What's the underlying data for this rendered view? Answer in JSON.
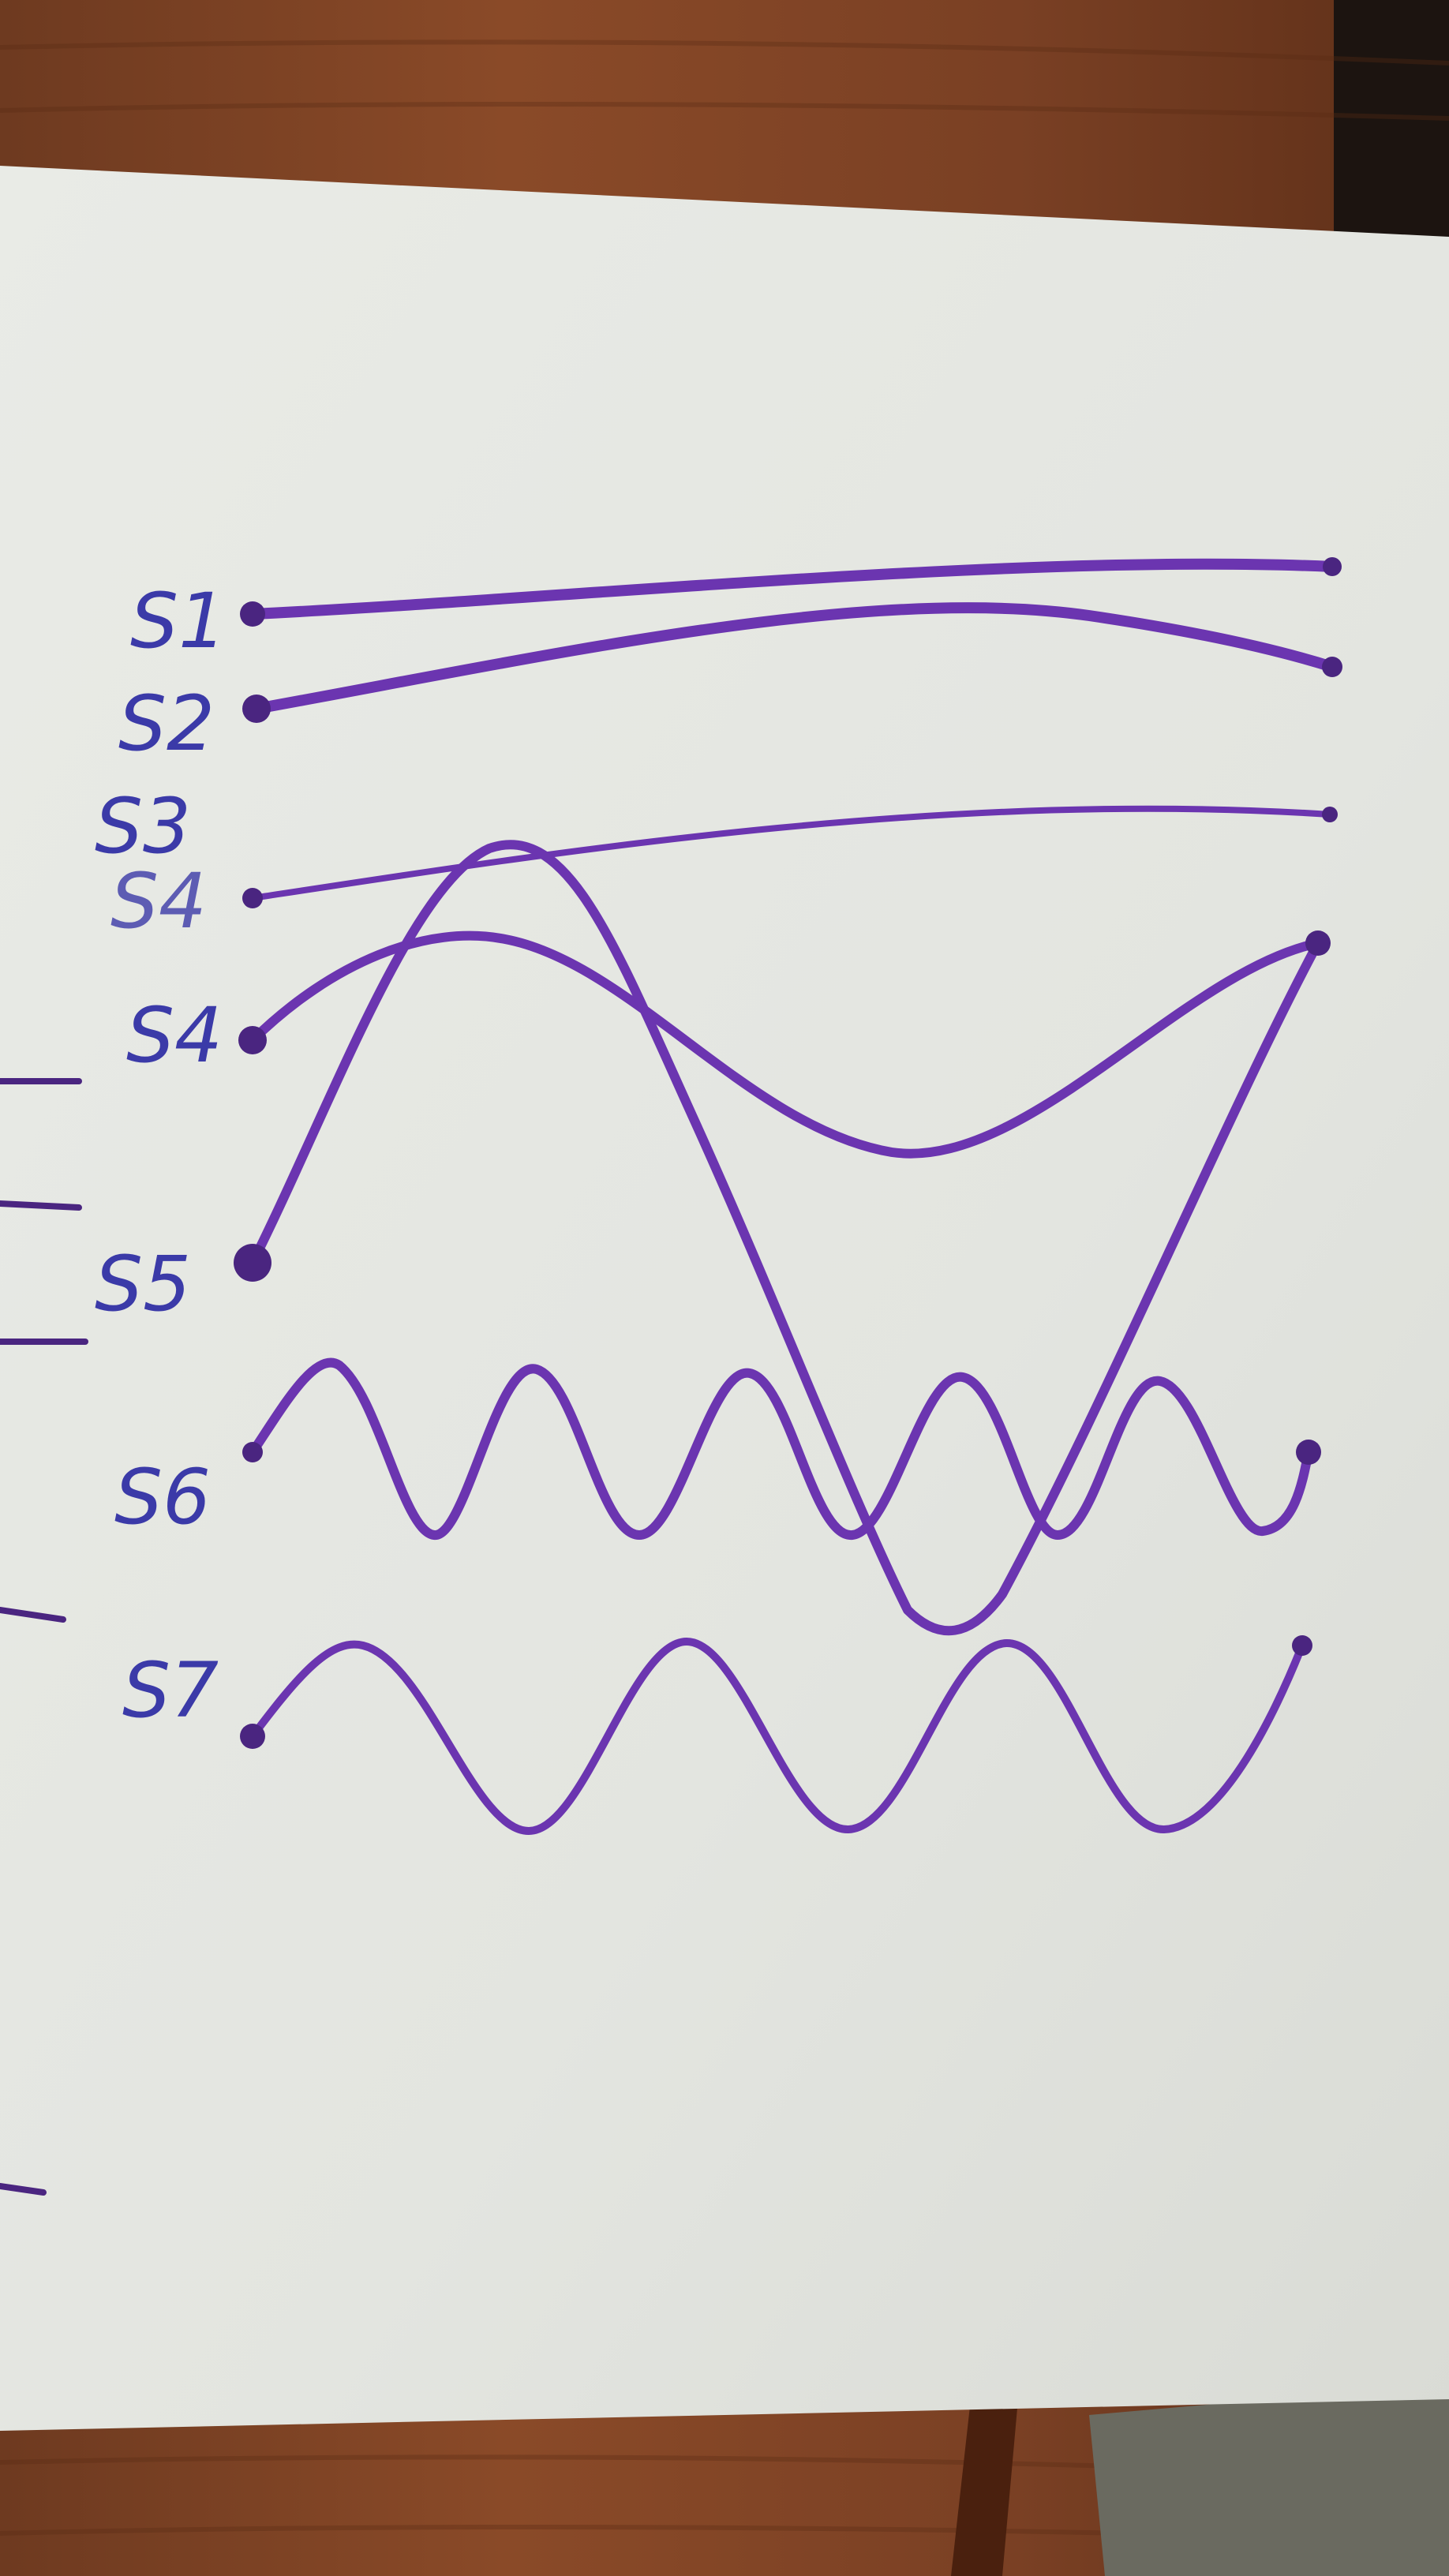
{
  "colors": {
    "table_wood": "#7a3f22",
    "table_wood_dark": "#5a2a14",
    "paper": "#e6e8e3",
    "ink_purple": "#6b35b0",
    "ink_purple_dark": "#4a2580",
    "label_ink": "#3b3aa8"
  },
  "labels": {
    "s1": "S1",
    "s2": "S2",
    "s3": "S3",
    "s4_overwritten": "S4",
    "s4": "S4",
    "s5": "S5",
    "s6": "S6",
    "s7": "S7"
  }
}
